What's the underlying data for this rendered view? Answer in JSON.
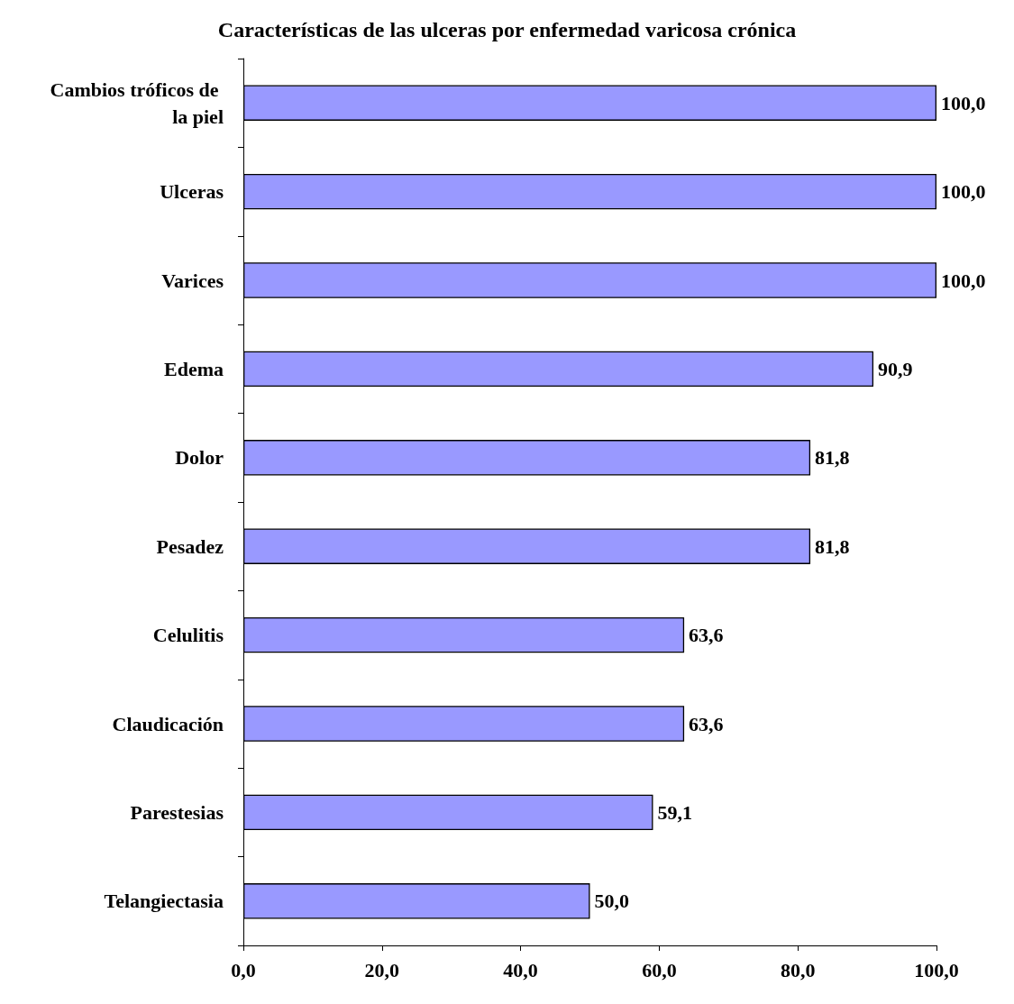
{
  "chart_data": {
    "type": "bar",
    "orientation": "horizontal",
    "title": "Características de las ulceras por enfermedad varicosa crónica",
    "categories": [
      "Cambios tróficos de la piel",
      "Ulceras",
      "Varices",
      "Edema",
      "Dolor",
      "Pesadez",
      "Celulitis",
      "Claudicación",
      "Parestesias",
      "Telangiectasia"
    ],
    "values": [
      100,
      100,
      100,
      90.9,
      81.8,
      81.8,
      63.6,
      63.6,
      59.1,
      50
    ],
    "value_labels": [
      "100,0",
      "100,0",
      "100,0",
      "90,9",
      "81,8",
      "81,8",
      "63,6",
      "63,6",
      "59,1",
      "50,0"
    ],
    "color": "#9999ff",
    "xlim": [
      0,
      100
    ],
    "xticks": [
      {
        "value": 0,
        "label": "0,0"
      },
      {
        "value": 20,
        "label": "20,0"
      },
      {
        "value": 40,
        "label": "40,0"
      },
      {
        "value": 60,
        "label": "60,0"
      },
      {
        "value": 80,
        "label": "80,0"
      },
      {
        "value": 100,
        "label": "100,0"
      }
    ],
    "grid": false
  }
}
